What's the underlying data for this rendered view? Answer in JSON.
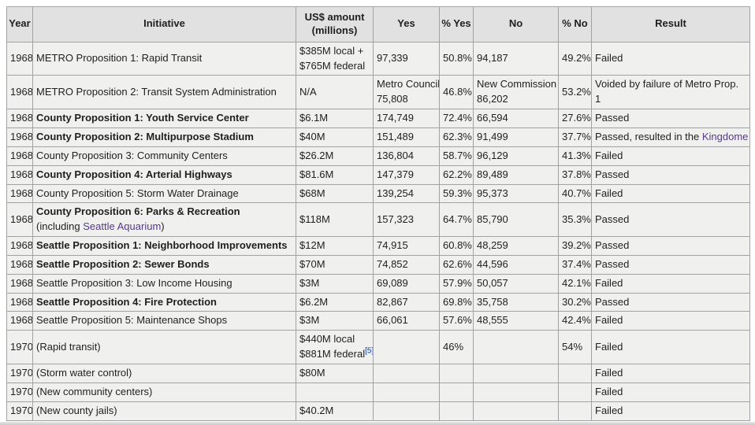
{
  "colors": {
    "table_border": "#a2a2a2",
    "header_bg": "#e1e1e1",
    "cell_bg": "#f0f0ef",
    "text": "#1f1f1f",
    "link_visited": "#5a3696",
    "link_blue": "#0645ad",
    "page_bg": "#ffffff"
  },
  "table": {
    "columns": [
      {
        "id": "year",
        "label": "Year"
      },
      {
        "id": "initiative",
        "label": "Initiative"
      },
      {
        "id": "amount",
        "label": "US$ amount\n(millions)"
      },
      {
        "id": "yes",
        "label": "Yes"
      },
      {
        "id": "yes_pct",
        "label": "% Yes"
      },
      {
        "id": "no",
        "label": "No"
      },
      {
        "id": "no_pct",
        "label": "% No"
      },
      {
        "id": "result",
        "label": "Result"
      }
    ],
    "rows": [
      {
        "year": "1968",
        "initiative": "METRO Proposition 1: Rapid Transit",
        "amount": {
          "lines": [
            "$385M local +",
            "$765M federal"
          ]
        },
        "yes": "97,339",
        "yes_pct": "50.8%",
        "no": "94,187",
        "no_pct": "49.2%",
        "result": "Failed"
      },
      {
        "year": "1968",
        "initiative": "METRO Proposition 2: Transit System Administration",
        "amount": "N/A",
        "yes": {
          "lines": [
            "Metro Council",
            "75,808"
          ]
        },
        "yes_pct": "46.8%",
        "no": {
          "lines": [
            "New Commission",
            "86,202"
          ]
        },
        "no_pct": "53.2%",
        "result": "Voided by failure of Metro Prop. 1"
      },
      {
        "year": "1968",
        "initiative": {
          "bold": true,
          "text": "County Proposition 1: Youth Service Center"
        },
        "amount": "$6.1M",
        "yes": "174,749",
        "yes_pct": "72.4%",
        "no": "66,594",
        "no_pct": "27.6%",
        "result": "Passed"
      },
      {
        "year": "1968",
        "initiative": {
          "bold": true,
          "text": "County Proposition 2: Multipurpose Stadium"
        },
        "amount": "$40M",
        "yes": "151,489",
        "yes_pct": "62.3%",
        "no": "91,499",
        "no_pct": "37.7%",
        "result": {
          "lines": [
            [
              {
                "t": "Passed, resulted in the "
              },
              {
                "t": "Kingdome",
                "link": "visited"
              }
            ]
          ]
        }
      },
      {
        "year": "1968",
        "initiative": "County Proposition 3: Community Centers",
        "amount": "$26.2M",
        "yes": "136,804",
        "yes_pct": "58.7%",
        "no": "96,129",
        "no_pct": "41.3%",
        "result": "Failed"
      },
      {
        "year": "1968",
        "initiative": {
          "bold": true,
          "text": "County Proposition 4: Arterial Highways"
        },
        "amount": "$81.6M",
        "yes": "147,379",
        "yes_pct": "62.2%",
        "no": "89,489",
        "no_pct": "37.8%",
        "result": "Passed"
      },
      {
        "year": "1968",
        "initiative": "County Proposition 5: Storm Water Drainage",
        "amount": "$68M",
        "yes": "139,254",
        "yes_pct": "59.3%",
        "no": "95,373",
        "no_pct": "40.7%",
        "result": "Failed"
      },
      {
        "year": "1968",
        "initiative": {
          "lines": [
            [
              {
                "t": "County Proposition 6: Parks & Recreation",
                "b": true
              }
            ],
            [
              {
                "t": "(including "
              },
              {
                "t": "Seattle Aquarium",
                "link": "visited"
              },
              {
                "t": ")"
              }
            ]
          ]
        },
        "amount": "$118M",
        "yes": "157,323",
        "yes_pct": "64.7%",
        "no": "85,790",
        "no_pct": "35.3%",
        "result": "Passed"
      },
      {
        "year": "1968",
        "initiative": {
          "bold": true,
          "text": "Seattle Proposition 1: Neighborhood Improvements"
        },
        "amount": "$12M",
        "yes": "74,915",
        "yes_pct": "60.8%",
        "no": "48,259",
        "no_pct": "39.2%",
        "result": "Passed"
      },
      {
        "year": "1968",
        "initiative": {
          "bold": true,
          "text": "Seattle Proposition 2: Sewer Bonds"
        },
        "amount": "$70M",
        "yes": "74,852",
        "yes_pct": "62.6%",
        "no": "44,596",
        "no_pct": "37.4%",
        "result": "Passed"
      },
      {
        "year": "1968",
        "initiative": "Seattle Proposition 3: Low Income Housing",
        "amount": "$3M",
        "yes": "69,089",
        "yes_pct": "57.9%",
        "no": "50,057",
        "no_pct": "42.1%",
        "result": "Failed"
      },
      {
        "year": "1968",
        "initiative": {
          "bold": true,
          "text": "Seattle Proposition 4: Fire Protection"
        },
        "amount": "$6.2M",
        "yes": "82,867",
        "yes_pct": "69.8%",
        "no": "35,758",
        "no_pct": "30.2%",
        "result": "Passed"
      },
      {
        "year": "1968",
        "initiative": "Seattle Proposition 5: Maintenance Shops",
        "amount": "$3M",
        "yes": "66,061",
        "yes_pct": "57.6%",
        "no": "48,555",
        "no_pct": "42.4%",
        "result": "Failed"
      },
      {
        "year": "1970",
        "initiative": "(Rapid transit)",
        "amount": {
          "lines": [
            "$440M local",
            [
              {
                "t": "$881M federal"
              },
              {
                "t": "[5]",
                "link": "blue",
                "sup": true
              }
            ]
          ]
        },
        "yes": "",
        "yes_pct": "46%",
        "no": "",
        "no_pct": "54%",
        "result": "Failed"
      },
      {
        "year": "1970",
        "initiative": "(Storm water control)",
        "amount": "$80M",
        "yes": "",
        "yes_pct": "",
        "no": "",
        "no_pct": "",
        "result": "Failed"
      },
      {
        "year": "1970",
        "initiative": "(New community centers)",
        "amount": "",
        "yes": "",
        "yes_pct": "",
        "no": "",
        "no_pct": "",
        "result": "Failed"
      },
      {
        "year": "1970",
        "initiative": "(New county jails)",
        "amount": "$40.2M",
        "yes": "",
        "yes_pct": "",
        "no": "",
        "no_pct": "",
        "result": "Failed"
      }
    ]
  }
}
